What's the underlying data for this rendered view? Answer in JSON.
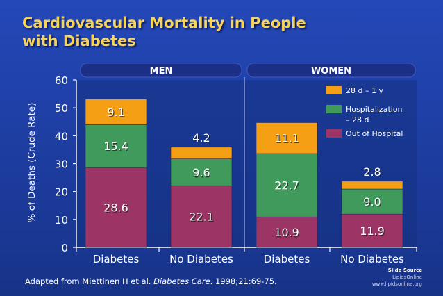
{
  "title_line1": "Cardiovascular Mortality in People",
  "title_line2": "with Diabetes",
  "chart_data": {
    "type": "bar",
    "stacked": true,
    "ylabel": "% of Deaths (Crude Rate)",
    "ylim": [
      0,
      60
    ],
    "yticks": [
      0,
      10,
      20,
      30,
      40,
      50,
      60
    ],
    "groups": [
      {
        "label": "MEN",
        "categories": [
          "Diabetes",
          "No Diabetes"
        ]
      },
      {
        "label": "WOMEN",
        "categories": [
          "Diabetes",
          "No Diabetes"
        ]
      }
    ],
    "categories": [
      "Diabetes",
      "No Diabetes",
      "Diabetes",
      "No Diabetes"
    ],
    "series": [
      {
        "name": "Out of Hospital",
        "color": "#9c3565",
        "values": [
          28.6,
          22.1,
          10.9,
          11.9
        ]
      },
      {
        "name": "Hospitalization – 28 d",
        "color": "#3f9a5c",
        "values": [
          15.4,
          9.6,
          22.7,
          9.0
        ]
      },
      {
        "name": "28 d – 1 y",
        "color": "#f59f14",
        "values": [
          9.1,
          4.2,
          11.1,
          2.8
        ]
      }
    ],
    "value_labels": [
      [
        "28.6",
        "22.1",
        "10.9",
        "11.9"
      ],
      [
        "15.4",
        "9.6",
        "22.7",
        "9.0"
      ],
      [
        "9.1",
        "4.2",
        "11.1",
        "2.8"
      ]
    ],
    "legend": [
      {
        "label": "28 d – 1 y",
        "color": "#f59f14"
      },
      {
        "label_line1": "Hospitalization",
        "label_line2": "– 28 d",
        "color": "#3f9a5c"
      },
      {
        "label": "Out of Hospital",
        "color": "#9c3565"
      }
    ],
    "legend_position": "top-right"
  },
  "footer": {
    "prefix": "Adapted from Miettinen H et al. ",
    "journal": "Diabetes Care",
    "suffix": ". 1998;21:69-75."
  },
  "source": {
    "line1": "Slide Source",
    "line2": "Lipids",
    "line2b": "Online",
    "line3": "www.lipidsonline.org"
  }
}
